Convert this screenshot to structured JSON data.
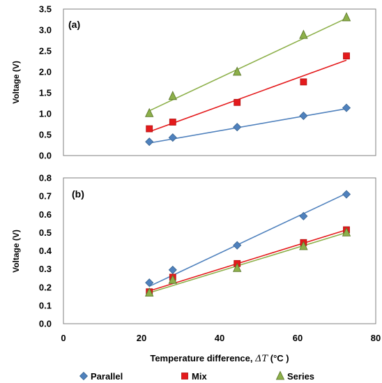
{
  "chart_data": [
    {
      "type": "scatter",
      "panel_label": "(a)",
      "ylabel": "Voltage (V)",
      "xlim": [
        0,
        80
      ],
      "ylim": [
        0,
        3.5
      ],
      "yticks": [
        "0.0",
        "0.5",
        "1.0",
        "1.5",
        "2.0",
        "2.5",
        "3.0",
        "3.5"
      ],
      "grid": false,
      "trendlines": true,
      "series": [
        {
          "name": "Parallel",
          "marker": "diamond",
          "color": "#4f81bd",
          "x": [
            22,
            28,
            44.5,
            61.5,
            72.5
          ],
          "y": [
            0.33,
            0.43,
            0.68,
            0.95,
            1.14
          ],
          "fit": [
            [
              22,
              0.3
            ],
            [
              72.5,
              1.12
            ]
          ]
        },
        {
          "name": "Mix",
          "marker": "square",
          "color": "#e41a1c",
          "x": [
            22,
            28,
            44.5,
            61.5,
            72.5
          ],
          "y": [
            0.64,
            0.8,
            1.27,
            1.76,
            2.38
          ],
          "fit": [
            [
              22,
              0.57
            ],
            [
              72.5,
              2.28
            ]
          ]
        },
        {
          "name": "Series",
          "marker": "triangle",
          "color": "#8db04a",
          "x": [
            22,
            28,
            44.5,
            61.5,
            72.5
          ],
          "y": [
            1.01,
            1.42,
            2.0,
            2.88,
            3.3
          ],
          "fit": [
            [
              22,
              1.07
            ],
            [
              72.5,
              3.28
            ]
          ]
        }
      ]
    },
    {
      "type": "scatter",
      "panel_label": "(b)",
      "ylabel": "Voltage (V)",
      "xlabel_prefix": "Temperature difference, ",
      "xlabel_symbol": "ΔT",
      "xlabel_suffix": " (°C )",
      "xlim": [
        0,
        80
      ],
      "ylim": [
        0,
        0.8
      ],
      "xticks": [
        "0",
        "20",
        "40",
        "60",
        "80"
      ],
      "yticks": [
        "0.0",
        "0.1",
        "0.2",
        "0.3",
        "0.4",
        "0.5",
        "0.6",
        "0.7",
        "0.8"
      ],
      "grid": false,
      "trendlines": true,
      "legend_position": "bottom",
      "series": [
        {
          "name": "Parallel",
          "marker": "diamond",
          "color": "#4f81bd",
          "x": [
            22,
            28,
            44.5,
            61.5,
            72.5
          ],
          "y": [
            0.225,
            0.295,
            0.43,
            0.59,
            0.71
          ],
          "fit": [
            [
              22,
              0.205
            ],
            [
              72.5,
              0.715
            ]
          ]
        },
        {
          "name": "Mix",
          "marker": "square",
          "color": "#e41a1c",
          "x": [
            22,
            28,
            44.5,
            61.5,
            72.5
          ],
          "y": [
            0.175,
            0.255,
            0.33,
            0.445,
            0.515
          ],
          "fit": [
            [
              22,
              0.18
            ],
            [
              72.5,
              0.515
            ]
          ]
        },
        {
          "name": "Series",
          "marker": "triangle",
          "color": "#8db04a",
          "x": [
            22,
            28,
            44.5,
            61.5,
            72.5
          ],
          "y": [
            0.17,
            0.24,
            0.305,
            0.425,
            0.5
          ],
          "fit": [
            [
              22,
              0.17
            ],
            [
              72.5,
              0.5
            ]
          ]
        }
      ]
    }
  ]
}
